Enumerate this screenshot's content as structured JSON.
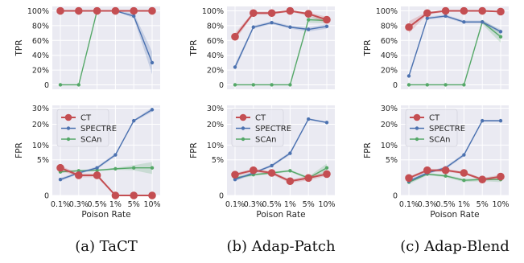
{
  "colors": {
    "CT": "#c44e52",
    "SPECTRE": "#4c72b0",
    "SCAn": "#55a868",
    "panel_bg": "#eaeaf2",
    "grid": "#ffffff"
  },
  "legend": [
    "CT",
    "SPECTRE",
    "SCAn"
  ],
  "chart_data": [
    {
      "type": "line",
      "caption": "(a) TaCT",
      "metric": "TPR",
      "xlabel": "",
      "ylabel": "TPR",
      "categories": [
        "0.1%",
        "0.3%",
        "0.5%",
        "1%",
        "5%",
        "10%"
      ],
      "yticks": [
        0,
        20,
        40,
        60,
        80,
        100
      ],
      "ytick_labels": [
        "0",
        "20%",
        "40%",
        "60%",
        "80%",
        "100%"
      ],
      "ylim": [
        -6,
        106
      ],
      "series": [
        {
          "name": "CT",
          "values": [
            100,
            100,
            100,
            100,
            100,
            100
          ],
          "lo": [
            99,
            99,
            99,
            99,
            99,
            99
          ],
          "hi": [
            100,
            100,
            100,
            100,
            100,
            100
          ]
        },
        {
          "name": "SPECTRE",
          "values": [
            100,
            100,
            100,
            100,
            93,
            30
          ],
          "lo": [
            100,
            100,
            100,
            100,
            90,
            14
          ],
          "hi": [
            100,
            100,
            100,
            100,
            97,
            45
          ]
        },
        {
          "name": "SCAn",
          "values": [
            0,
            0,
            100,
            100,
            100,
            100
          ],
          "lo": [
            0,
            0,
            99,
            99,
            99,
            99
          ],
          "hi": [
            0,
            0,
            100,
            100,
            100,
            100
          ]
        }
      ]
    },
    {
      "type": "line",
      "caption": "(b) Adap-Patch",
      "metric": "TPR",
      "xlabel": "",
      "ylabel": "TPR",
      "categories": [
        "0.1%",
        "0.3%",
        "0.5%",
        "1%",
        "5%",
        "10%"
      ],
      "yticks": [
        0,
        20,
        40,
        60,
        80,
        100
      ],
      "ytick_labels": [
        "0",
        "20%",
        "40%",
        "60%",
        "80%",
        "100%"
      ],
      "ylim": [
        -6,
        106
      ],
      "series": [
        {
          "name": "CT",
          "values": [
            65,
            97,
            97,
            100,
            96,
            88
          ],
          "lo": [
            60,
            95,
            95,
            99,
            93,
            83
          ],
          "hi": [
            70,
            99,
            99,
            100,
            98,
            92
          ]
        },
        {
          "name": "SPECTRE",
          "values": [
            24,
            78,
            84,
            78,
            75,
            79
          ],
          "lo": [
            20,
            76,
            82,
            76,
            72,
            76
          ],
          "hi": [
            28,
            80,
            86,
            80,
            78,
            82
          ]
        },
        {
          "name": "SCAn",
          "values": [
            0,
            0,
            0,
            0,
            88,
            87
          ],
          "lo": [
            0,
            0,
            0,
            0,
            84,
            83
          ],
          "hi": [
            0,
            0,
            0,
            0,
            91,
            91
          ]
        }
      ]
    },
    {
      "type": "line",
      "caption": "(c) Adap-Blend",
      "metric": "TPR",
      "xlabel": "",
      "ylabel": "TPR",
      "categories": [
        "0.1%",
        "0.3%",
        "0.5%",
        "1%",
        "5%",
        "10%"
      ],
      "yticks": [
        0,
        20,
        40,
        60,
        80,
        100
      ],
      "ytick_labels": [
        "0",
        "20%",
        "40%",
        "60%",
        "80%",
        "100%"
      ],
      "ylim": [
        -6,
        106
      ],
      "series": [
        {
          "name": "CT",
          "values": [
            78,
            97,
            100,
            100,
            100,
            99
          ],
          "lo": [
            70,
            95,
            99,
            99,
            99,
            98
          ],
          "hi": [
            86,
            99,
            100,
            100,
            100,
            100
          ]
        },
        {
          "name": "SPECTRE",
          "values": [
            12,
            90,
            93,
            85,
            85,
            72
          ],
          "lo": [
            9,
            88,
            91,
            83,
            83,
            69
          ],
          "hi": [
            15,
            92,
            95,
            87,
            87,
            75
          ]
        },
        {
          "name": "SCAn",
          "values": [
            0,
            0,
            0,
            0,
            85,
            65
          ],
          "lo": [
            0,
            0,
            0,
            0,
            82,
            57
          ],
          "hi": [
            0,
            0,
            0,
            0,
            88,
            73
          ]
        }
      ]
    },
    {
      "type": "line",
      "caption": "(a) TaCT",
      "metric": "FPR",
      "xlabel": "Poison Rate",
      "ylabel": "FPR",
      "categories": [
        "0.1%",
        "0.3%",
        "0.5%",
        "1%",
        "5%",
        "10%"
      ],
      "yticks": [
        0,
        5,
        10,
        20,
        30
      ],
      "ytick_labels": [
        "0",
        "5%",
        "10%",
        "20%",
        "30%"
      ],
      "scale": "sqrt",
      "ylim": [
        0,
        32
      ],
      "series": [
        {
          "name": "CT",
          "values": [
            3,
            1.6,
            1.6,
            0,
            0,
            0
          ],
          "lo": [
            2.5,
            1.3,
            1.3,
            0,
            0,
            0
          ],
          "hi": [
            3.5,
            1.9,
            1.9,
            0,
            0,
            0
          ]
        },
        {
          "name": "SPECTRE",
          "values": [
            1,
            2,
            3,
            6.5,
            22,
            29
          ],
          "lo": [
            0.8,
            1.8,
            2.7,
            6,
            21.5,
            27.5
          ],
          "hi": [
            1.2,
            2.2,
            3.3,
            7,
            22.5,
            30.5
          ]
        },
        {
          "name": "SCAn",
          "values": [
            2.2,
            2.4,
            2.5,
            2.8,
            3,
            3
          ],
          "lo": [
            2,
            2.2,
            2.3,
            2.6,
            2.5,
            1.8
          ],
          "hi": [
            2.4,
            2.6,
            2.7,
            3,
            3.6,
            4.4
          ]
        }
      ]
    },
    {
      "type": "line",
      "caption": "(b) Adap-Patch",
      "metric": "FPR",
      "xlabel": "Poison Rate",
      "ylabel": "FPR",
      "categories": [
        "0.1%",
        "0.3%",
        "0.5%",
        "1%",
        "5%",
        "10%"
      ],
      "yticks": [
        0,
        5,
        10,
        20,
        30
      ],
      "ytick_labels": [
        "0",
        "5%",
        "10%",
        "20%",
        "30%"
      ],
      "scale": "sqrt",
      "ylim": [
        0,
        32
      ],
      "series": [
        {
          "name": "CT",
          "values": [
            1.7,
            2.5,
            2,
            0.8,
            1.2,
            1.8
          ],
          "lo": [
            1.4,
            2.2,
            1.7,
            0.6,
            0.9,
            1.5
          ],
          "hi": [
            2,
            2.8,
            2.3,
            1,
            1.5,
            2.1
          ]
        },
        {
          "name": "SPECTRE",
          "values": [
            1,
            2,
            3.5,
            7,
            23,
            21
          ],
          "lo": [
            0.8,
            1.8,
            3.2,
            6.5,
            22.5,
            20.5
          ],
          "hi": [
            1.2,
            2.2,
            3.8,
            7.5,
            23.5,
            21.5
          ]
        },
        {
          "name": "SCAn",
          "values": [
            1.2,
            1.7,
            2,
            2.4,
            1.2,
            3
          ],
          "lo": [
            1,
            1.5,
            1.8,
            2.2,
            1,
            2.2
          ],
          "hi": [
            1.4,
            1.9,
            2.2,
            2.6,
            1.4,
            4
          ]
        }
      ]
    },
    {
      "type": "line",
      "caption": "(c) Adap-Blend",
      "metric": "FPR",
      "xlabel": "Poison Rate",
      "ylabel": "FPR",
      "categories": [
        "0.1%",
        "0.3%",
        "0.5%",
        "1%",
        "5%",
        "10%"
      ],
      "yticks": [
        0,
        5,
        10,
        20,
        30
      ],
      "ytick_labels": [
        "0",
        "5%",
        "10%",
        "20%",
        "30%"
      ],
      "scale": "sqrt",
      "ylim": [
        0,
        32
      ],
      "series": [
        {
          "name": "CT",
          "values": [
            1.2,
            2.5,
            2.5,
            2,
            1,
            1.4
          ],
          "lo": [
            1,
            2.2,
            2.2,
            1.8,
            0.8,
            1.1
          ],
          "hi": [
            1.4,
            2.8,
            2.8,
            2.2,
            1.2,
            1.7
          ]
        },
        {
          "name": "SPECTRE",
          "values": [
            0.8,
            2,
            3,
            6.5,
            22,
            22
          ],
          "lo": [
            0.6,
            1.8,
            2.7,
            6,
            21.5,
            21.5
          ],
          "hi": [
            1,
            2.2,
            3.3,
            7,
            22.5,
            22.5
          ]
        },
        {
          "name": "SCAn",
          "values": [
            0.7,
            1.8,
            1.5,
            0.9,
            1,
            1
          ],
          "lo": [
            0.5,
            1.6,
            1.3,
            0.7,
            0.8,
            0.7
          ],
          "hi": [
            0.9,
            2,
            1.7,
            1.1,
            1.2,
            1.5
          ]
        }
      ]
    }
  ]
}
